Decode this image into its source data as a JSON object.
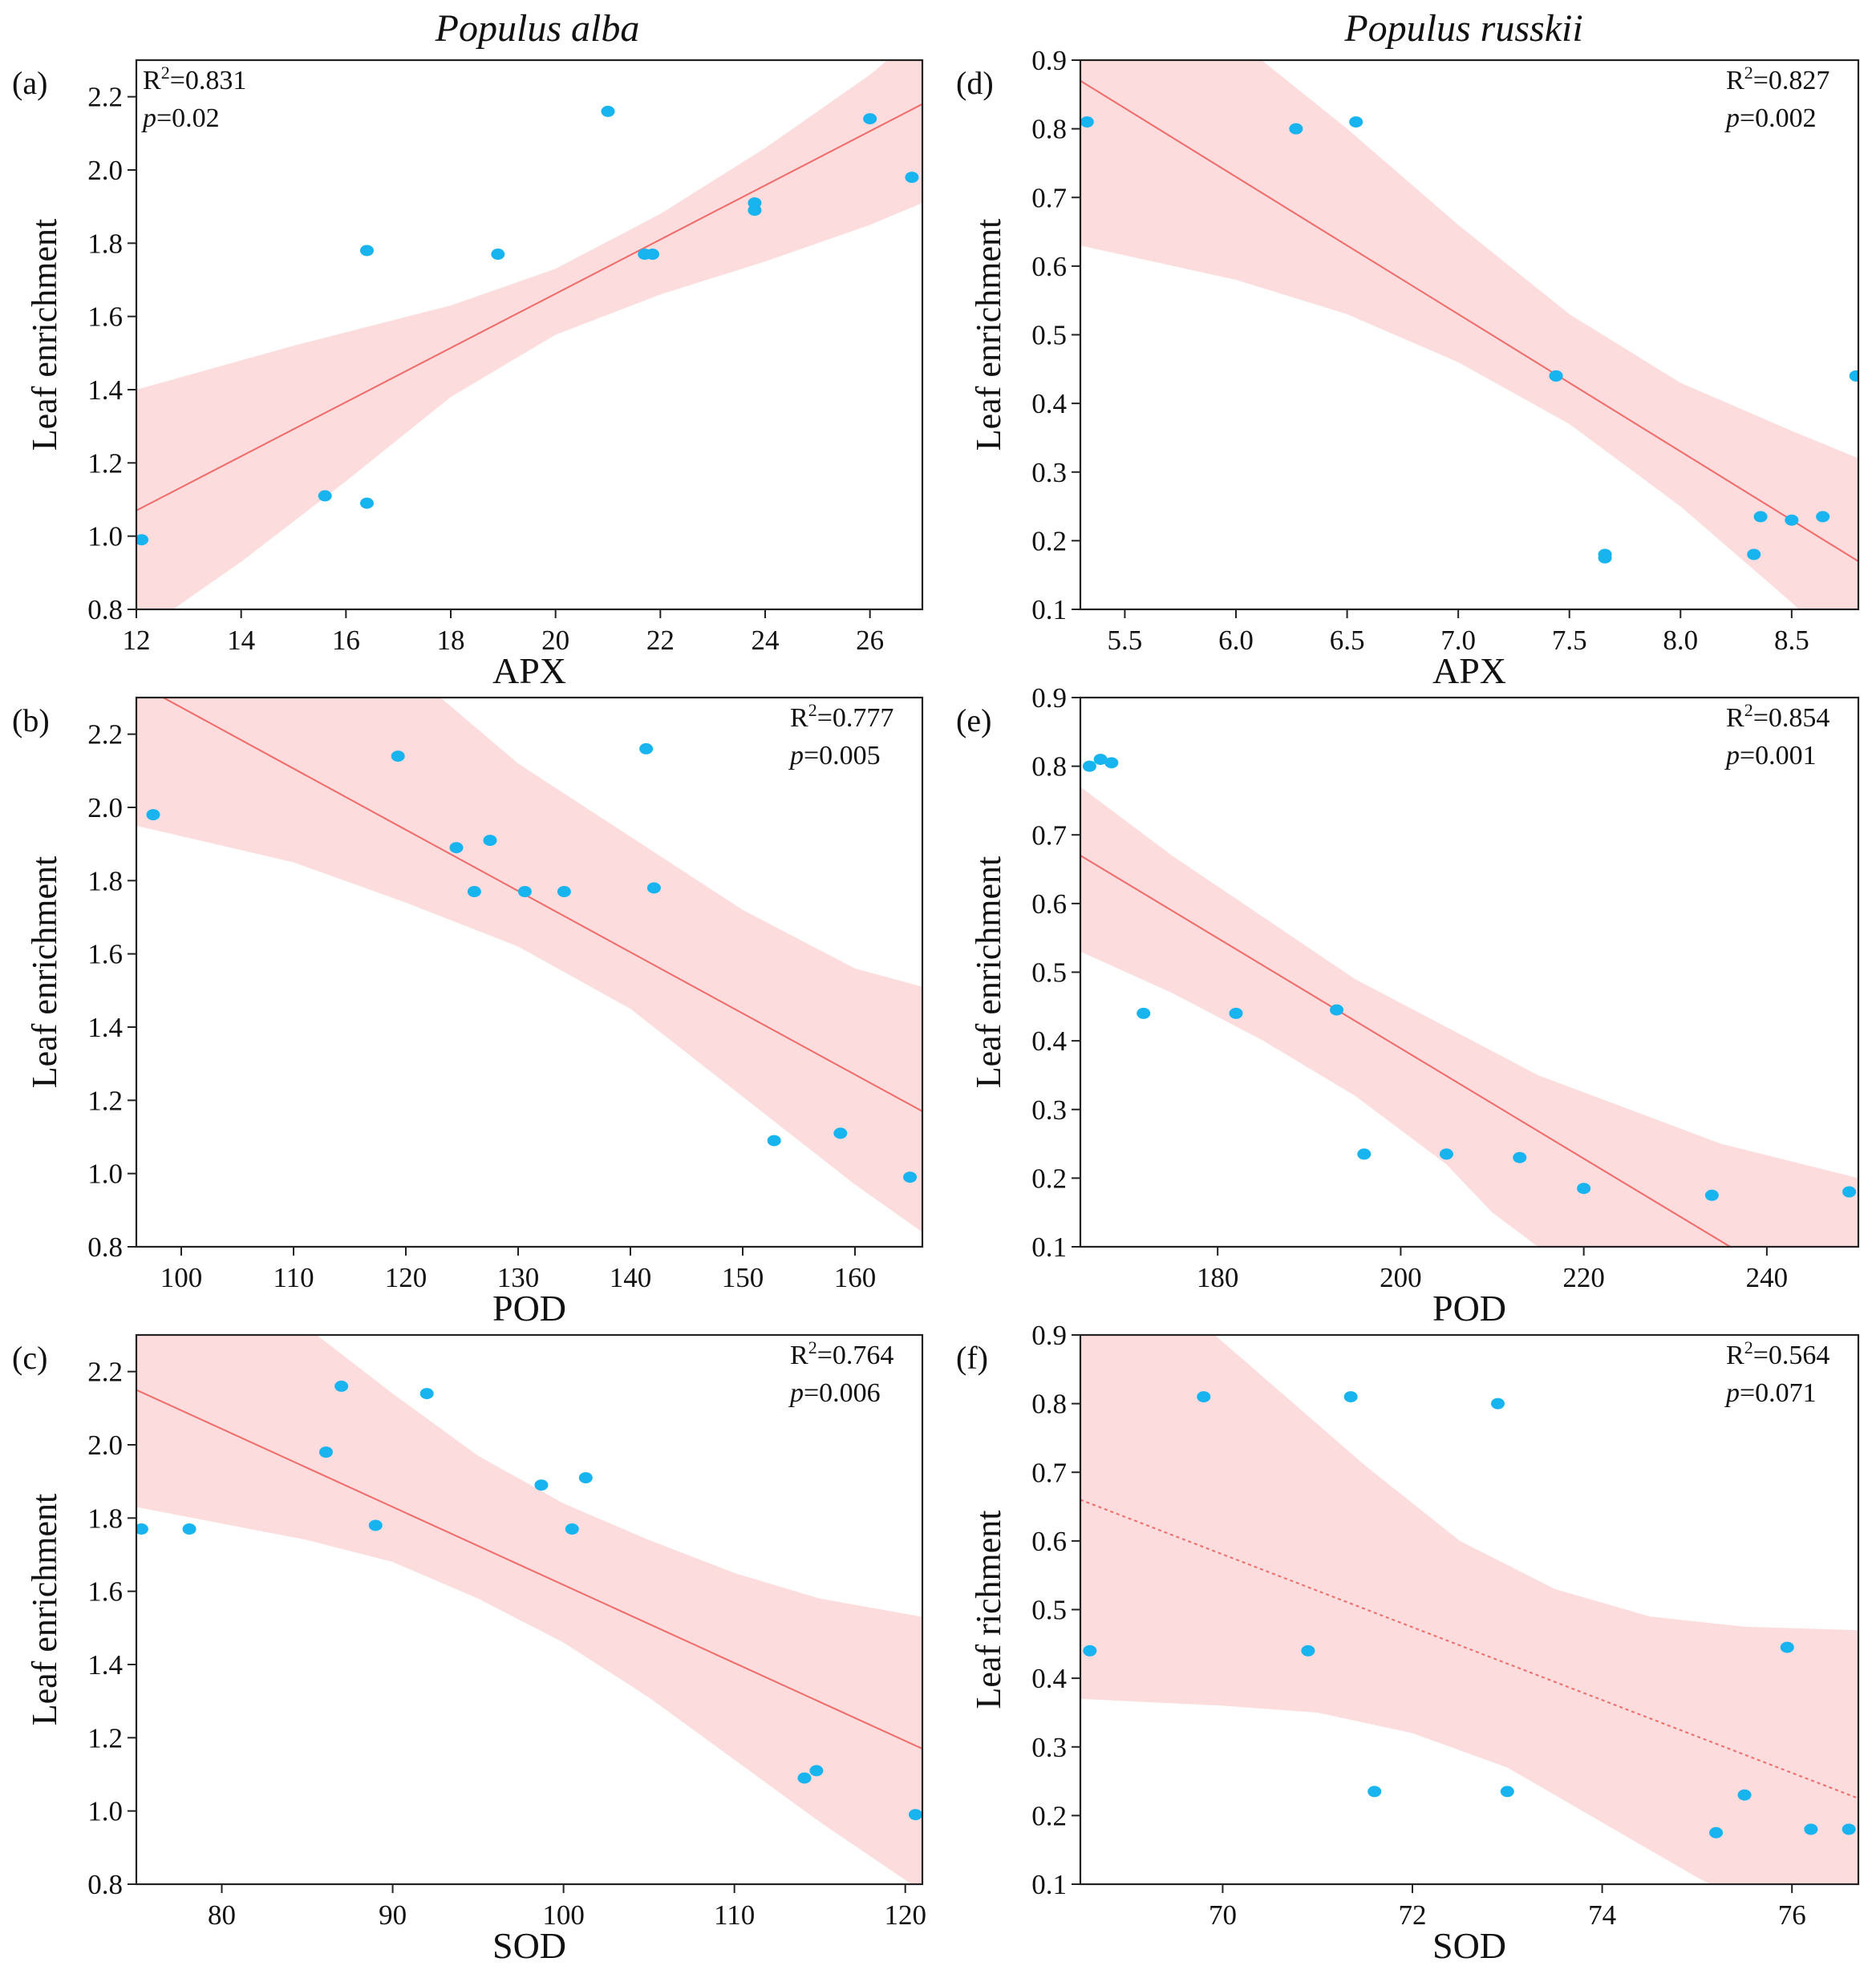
{
  "column_titles": [
    "Populus alba",
    "Populus russkii"
  ],
  "chart_data": [
    {
      "type": "scatter",
      "panel": "(a)",
      "xlabel": "APX",
      "ylabel": "Leaf enrichment",
      "xlim": [
        12,
        27
      ],
      "ylim": [
        0.8,
        2.3
      ],
      "xticks": [
        12,
        14,
        16,
        18,
        20,
        22,
        24,
        26
      ],
      "yticks": [
        0.8,
        1.0,
        1.2,
        1.4,
        1.6,
        1.8,
        2.0,
        2.2
      ],
      "ydec": 1,
      "stats": [
        "0.831",
        "0.02"
      ],
      "stats_pos": "top-left",
      "fit": [
        [
          12,
          1.07
        ],
        [
          27,
          2.18
        ]
      ],
      "fit_style": "solid",
      "band_upper": [
        [
          12,
          1.4
        ],
        [
          15,
          1.52
        ],
        [
          18,
          1.63
        ],
        [
          20,
          1.73
        ],
        [
          22,
          1.88
        ],
        [
          24,
          2.06
        ],
        [
          26,
          2.26
        ],
        [
          27,
          2.38
        ]
      ],
      "band_lower": [
        [
          12,
          0.73
        ],
        [
          14,
          0.93
        ],
        [
          16,
          1.15
        ],
        [
          18,
          1.38
        ],
        [
          20,
          1.55
        ],
        [
          22,
          1.66
        ],
        [
          24,
          1.75
        ],
        [
          26,
          1.85
        ],
        [
          27,
          1.91
        ]
      ],
      "points": [
        [
          12.1,
          0.99
        ],
        [
          15.6,
          1.11
        ],
        [
          16.4,
          1.09
        ],
        [
          16.4,
          1.78
        ],
        [
          18.9,
          1.77
        ],
        [
          21.0,
          2.16
        ],
        [
          21.7,
          1.77
        ],
        [
          21.85,
          1.77
        ],
        [
          23.8,
          1.89
        ],
        [
          23.8,
          1.91
        ],
        [
          26.0,
          2.14
        ],
        [
          26.8,
          1.98
        ]
      ]
    },
    {
      "type": "scatter",
      "panel": "(b)",
      "xlabel": "POD",
      "ylabel": "Leaf enrichment",
      "xlim": [
        96,
        166
      ],
      "ylim": [
        0.8,
        2.3
      ],
      "xticks": [
        100,
        110,
        120,
        130,
        140,
        150,
        160
      ],
      "yticks": [
        0.8,
        1.0,
        1.2,
        1.4,
        1.6,
        1.8,
        2.0,
        2.2
      ],
      "ydec": 1,
      "stats": [
        "0.777",
        "0.005"
      ],
      "stats_pos": "top-right",
      "fit": [
        [
          96,
          2.34
        ],
        [
          166,
          1.17
        ]
      ],
      "fit_style": "solid",
      "band_upper": [
        [
          96,
          2.72
        ],
        [
          110,
          2.55
        ],
        [
          120,
          2.38
        ],
        [
          130,
          2.12
        ],
        [
          140,
          1.92
        ],
        [
          150,
          1.72
        ],
        [
          160,
          1.56
        ],
        [
          166,
          1.51
        ]
      ],
      "band_lower": [
        [
          96,
          1.95
        ],
        [
          110,
          1.85
        ],
        [
          120,
          1.74
        ],
        [
          130,
          1.62
        ],
        [
          140,
          1.45
        ],
        [
          150,
          1.21
        ],
        [
          160,
          0.97
        ],
        [
          166,
          0.84
        ]
      ],
      "points": [
        [
          97.5,
          1.98
        ],
        [
          119.3,
          2.14
        ],
        [
          124.5,
          1.89
        ],
        [
          126.1,
          1.77
        ],
        [
          127.5,
          1.91
        ],
        [
          130.6,
          1.77
        ],
        [
          134.1,
          1.77
        ],
        [
          141.4,
          2.16
        ],
        [
          142.1,
          1.78
        ],
        [
          152.8,
          1.09
        ],
        [
          158.7,
          1.11
        ],
        [
          164.9,
          0.99
        ]
      ]
    },
    {
      "type": "scatter",
      "panel": "(c)",
      "xlabel": "SOD",
      "ylabel": "Leaf enrichment",
      "xlim": [
        75,
        121
      ],
      "ylim": [
        0.8,
        2.3
      ],
      "xticks": [
        80,
        90,
        100,
        110,
        120
      ],
      "yticks": [
        0.8,
        1.0,
        1.2,
        1.4,
        1.6,
        1.8,
        2.0,
        2.2
      ],
      "ydec": 1,
      "stats": [
        "0.764",
        "0.006"
      ],
      "stats_pos": "top-right",
      "fit": [
        [
          75,
          2.15
        ],
        [
          121,
          1.17
        ]
      ],
      "fit_style": "solid",
      "band_upper": [
        [
          75,
          2.48
        ],
        [
          85,
          2.32
        ],
        [
          90,
          2.14
        ],
        [
          95,
          1.97
        ],
        [
          100,
          1.84
        ],
        [
          105,
          1.74
        ],
        [
          110,
          1.65
        ],
        [
          115,
          1.58
        ],
        [
          121,
          1.53
        ]
      ],
      "band_lower": [
        [
          75,
          1.83
        ],
        [
          85,
          1.74
        ],
        [
          90,
          1.68
        ],
        [
          95,
          1.58
        ],
        [
          100,
          1.46
        ],
        [
          105,
          1.31
        ],
        [
          110,
          1.14
        ],
        [
          115,
          0.97
        ],
        [
          121,
          0.78
        ]
      ],
      "points": [
        [
          75.3,
          1.77
        ],
        [
          78.1,
          1.77
        ],
        [
          86.1,
          1.98
        ],
        [
          87.0,
          2.16
        ],
        [
          89.0,
          1.78
        ],
        [
          92.0,
          2.14
        ],
        [
          98.7,
          1.89
        ],
        [
          100.5,
          1.77
        ],
        [
          101.3,
          1.91
        ],
        [
          114.1,
          1.09
        ],
        [
          114.8,
          1.11
        ],
        [
          120.6,
          0.99
        ]
      ]
    },
    {
      "type": "scatter",
      "panel": "(d)",
      "xlabel": "APX",
      "ylabel": "Leaf enrichment",
      "xlim": [
        5.3,
        8.8
      ],
      "ylim": [
        0.1,
        0.9
      ],
      "xticks": [
        5.5,
        6.0,
        6.5,
        7.0,
        7.5,
        8.0,
        8.5
      ],
      "yticks": [
        0.1,
        0.2,
        0.3,
        0.4,
        0.5,
        0.6,
        0.7,
        0.8,
        0.9
      ],
      "ydec": 1,
      "stats": [
        "0.827",
        "0.002"
      ],
      "stats_pos": "top-right",
      "fit": [
        [
          5.3,
          0.87
        ],
        [
          8.8,
          0.17
        ]
      ],
      "fit_style": "solid",
      "band_upper": [
        [
          5.3,
          1.08
        ],
        [
          6.0,
          0.93
        ],
        [
          6.5,
          0.8
        ],
        [
          7.0,
          0.66
        ],
        [
          7.5,
          0.53
        ],
        [
          8.0,
          0.43
        ],
        [
          8.5,
          0.36
        ],
        [
          8.8,
          0.32
        ]
      ],
      "band_lower": [
        [
          5.3,
          0.63
        ],
        [
          6.0,
          0.58
        ],
        [
          6.5,
          0.53
        ],
        [
          7.0,
          0.46
        ],
        [
          7.5,
          0.37
        ],
        [
          8.0,
          0.25
        ],
        [
          8.5,
          0.11
        ],
        [
          8.8,
          0.02
        ]
      ],
      "points": [
        [
          5.33,
          0.81
        ],
        [
          6.27,
          0.8
        ],
        [
          6.54,
          0.81
        ],
        [
          7.44,
          0.44
        ],
        [
          7.44,
          0.44
        ],
        [
          7.66,
          0.18
        ],
        [
          7.66,
          0.175
        ],
        [
          8.33,
          0.18
        ],
        [
          8.36,
          0.235
        ],
        [
          8.5,
          0.23
        ],
        [
          8.64,
          0.235
        ],
        [
          8.79,
          0.44
        ]
      ]
    },
    {
      "type": "scatter",
      "panel": "(e)",
      "xlabel": "POD",
      "ylabel": "Leaf enrichment",
      "xlim": [
        165,
        250
      ],
      "ylim": [
        0.1,
        0.9
      ],
      "xticks": [
        180,
        200,
        220,
        240
      ],
      "yticks": [
        0.1,
        0.2,
        0.3,
        0.4,
        0.5,
        0.6,
        0.7,
        0.8,
        0.9
      ],
      "ydec": 1,
      "stats": [
        "0.854",
        "0.001"
      ],
      "stats_pos": "top-right",
      "fit": [
        [
          165,
          0.67
        ],
        [
          236,
          0.1
        ]
      ],
      "fit_style": "solid",
      "band_upper": [
        [
          165,
          0.77
        ],
        [
          175,
          0.67
        ],
        [
          185,
          0.58
        ],
        [
          195,
          0.49
        ],
        [
          205,
          0.42
        ],
        [
          215,
          0.35
        ],
        [
          225,
          0.3
        ],
        [
          235,
          0.25
        ],
        [
          250,
          0.2
        ]
      ],
      "band_lower": [
        [
          165,
          0.53
        ],
        [
          175,
          0.47
        ],
        [
          185,
          0.4
        ],
        [
          195,
          0.32
        ],
        [
          205,
          0.22
        ],
        [
          210,
          0.15
        ],
        [
          220,
          0.05
        ],
        [
          230,
          -0.06
        ],
        [
          250,
          -0.28
        ]
      ],
      "points": [
        [
          166.0,
          0.8
        ],
        [
          167.2,
          0.81
        ],
        [
          168.4,
          0.805
        ],
        [
          171.9,
          0.44
        ],
        [
          182.0,
          0.44
        ],
        [
          193.0,
          0.445
        ],
        [
          196.0,
          0.235
        ],
        [
          205.0,
          0.235
        ],
        [
          213.0,
          0.23
        ],
        [
          220.0,
          0.185
        ],
        [
          234.0,
          0.175
        ],
        [
          249.0,
          0.18
        ]
      ]
    },
    {
      "type": "scatter",
      "panel": "(f)",
      "xlabel": "SOD",
      "ylabel": "Leaf richment",
      "xlim": [
        68.5,
        76.7
      ],
      "ylim": [
        0.1,
        0.9
      ],
      "xticks": [
        70,
        72,
        74,
        76
      ],
      "yticks": [
        0.1,
        0.2,
        0.3,
        0.4,
        0.5,
        0.6,
        0.7,
        0.8,
        0.9
      ],
      "ydec": 1,
      "stats": [
        "0.564",
        "0.071"
      ],
      "stats_pos": "top-right",
      "fit": [
        [
          68.5,
          0.66
        ],
        [
          76.7,
          0.225
        ]
      ],
      "fit_style": "dotted",
      "band_upper": [
        [
          68.5,
          1.05
        ],
        [
          69.5,
          0.95
        ],
        [
          70.5,
          0.83
        ],
        [
          71.5,
          0.71
        ],
        [
          72.5,
          0.6
        ],
        [
          73.5,
          0.53
        ],
        [
          74.5,
          0.49
        ],
        [
          75.5,
          0.475
        ],
        [
          76.7,
          0.47
        ]
      ],
      "band_lower": [
        [
          68.5,
          0.37
        ],
        [
          70.0,
          0.36
        ],
        [
          71.0,
          0.35
        ],
        [
          72.0,
          0.32
        ],
        [
          73.0,
          0.27
        ],
        [
          74.0,
          0.19
        ],
        [
          75.0,
          0.11
        ],
        [
          76.0,
          0.04
        ],
        [
          76.7,
          -0.01
        ]
      ],
      "points": [
        [
          68.6,
          0.44
        ],
        [
          69.8,
          0.81
        ],
        [
          70.9,
          0.44
        ],
        [
          71.35,
          0.81
        ],
        [
          71.6,
          0.235
        ],
        [
          72.9,
          0.8
        ],
        [
          73.0,
          0.235
        ],
        [
          75.2,
          0.175
        ],
        [
          75.5,
          0.23
        ],
        [
          75.95,
          0.445
        ],
        [
          76.2,
          0.18
        ],
        [
          76.6,
          0.18
        ]
      ]
    }
  ]
}
